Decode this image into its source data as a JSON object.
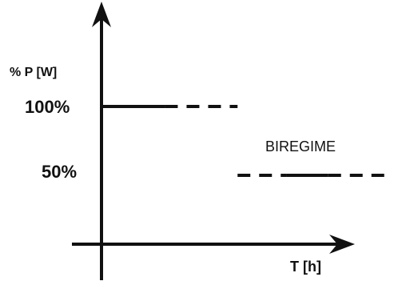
{
  "chart_data": {
    "type": "line",
    "ylabel": "% P [W]",
    "xlabel": "T [h]",
    "y_ticks": [
      "100%",
      "50%"
    ],
    "ylim": [
      0,
      130
    ],
    "annotations": [
      "BIREGIME"
    ],
    "series": [
      {
        "segments": [
          {
            "level": 100,
            "start": 0.0,
            "end": 0.35,
            "style": "solid"
          },
          {
            "level": 100,
            "start": 0.35,
            "end": 0.75,
            "style": "dashed"
          }
        ]
      },
      {
        "segments": [
          {
            "level": 50,
            "start": 0.75,
            "end": 1.02,
            "style": "dashed"
          },
          {
            "level": 50,
            "start": 1.02,
            "end": 1.25,
            "style": "solid"
          },
          {
            "level": 50,
            "start": 1.25,
            "end": 1.6,
            "style": "dashed"
          }
        ]
      }
    ],
    "grid": false,
    "colors": {
      "ink": "#111111"
    }
  }
}
